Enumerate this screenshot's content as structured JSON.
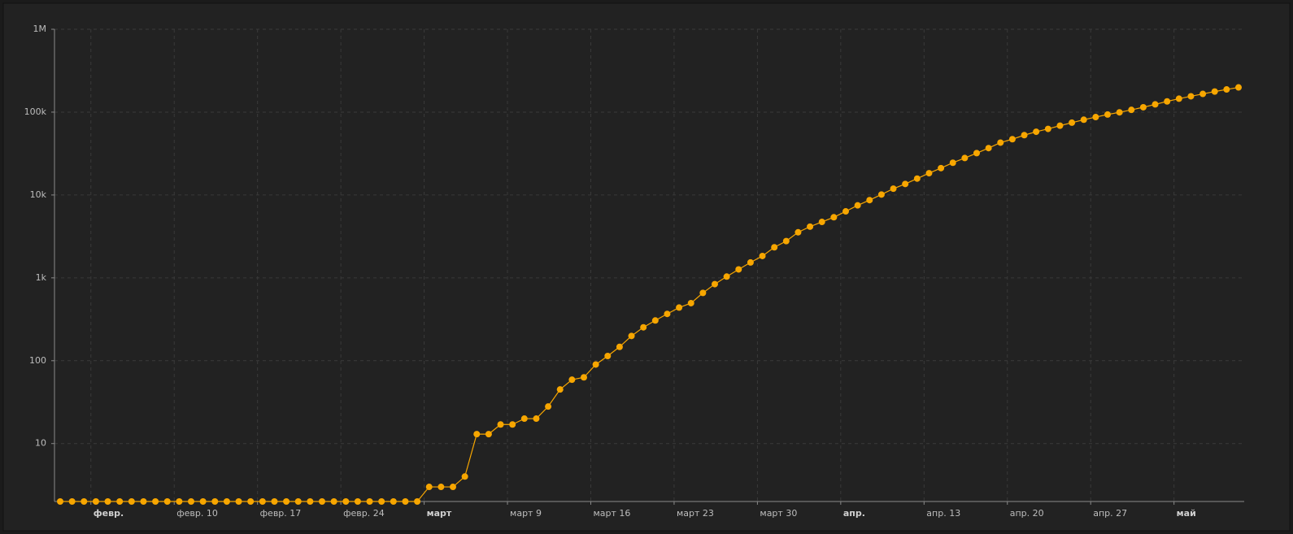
{
  "chart_data": {
    "type": "line",
    "categories": [
      null,
      null,
      null,
      "февр.",
      null,
      null,
      null,
      null,
      null,
      null,
      "февр. 10",
      null,
      null,
      null,
      null,
      null,
      null,
      "февр. 17",
      null,
      null,
      null,
      null,
      null,
      null,
      "февр. 24",
      null,
      null,
      null,
      null,
      null,
      null,
      "март",
      null,
      null,
      null,
      null,
      null,
      null,
      "март 9",
      null,
      null,
      null,
      null,
      null,
      null,
      "март 16",
      null,
      null,
      null,
      null,
      null,
      null,
      "март 23",
      null,
      null,
      null,
      null,
      null,
      null,
      "март 30",
      null,
      null,
      null,
      null,
      null,
      null,
      "апр.",
      null,
      null,
      null,
      null,
      null,
      null,
      "апр. 13",
      null,
      null,
      null,
      null,
      null,
      null,
      "апр. 20",
      null,
      null,
      null,
      null,
      null,
      null,
      "апр. 27",
      null,
      null,
      null,
      null,
      null,
      null,
      "май",
      null,
      null,
      null,
      null,
      null
    ],
    "values": [
      2,
      2,
      2,
      2,
      2,
      2,
      2,
      2,
      2,
      2,
      2,
      2,
      2,
      2,
      2,
      2,
      2,
      2,
      2,
      2,
      2,
      2,
      2,
      2,
      2,
      2,
      2,
      2,
      2,
      2,
      2,
      3,
      3,
      3,
      4,
      13,
      13,
      17,
      17,
      20,
      20,
      28,
      45,
      59,
      63,
      90,
      114,
      147,
      199,
      253,
      306,
      367,
      438,
      495,
      658,
      840,
      1036,
      1264,
      1534,
      1836,
      2337,
      2777,
      3548,
      4149,
      4731,
      5389,
      6343,
      7497,
      8672,
      10131,
      11917,
      13584,
      15770,
      18328,
      21102,
      24490,
      27938,
      32008,
      36793,
      42853,
      47121,
      52763,
      57999,
      62773,
      68622,
      74588,
      80949,
      87147,
      93558,
      99399,
      106498,
      114431,
      124054,
      134687,
      145268,
      155370,
      165929,
      177160,
      187859,
      198676
    ],
    "color": "#f7a600",
    "ylim": [
      2,
      1000000
    ],
    "yticks": [
      10,
      100,
      {
        "value": 1000,
        "label": "1k"
      },
      {
        "value": 10000,
        "label": "10k"
      },
      {
        "value": 100000,
        "label": "100k"
      },
      {
        "value": 1000000,
        "label": "1M"
      }
    ],
    "log_y": true,
    "grid": true
  }
}
